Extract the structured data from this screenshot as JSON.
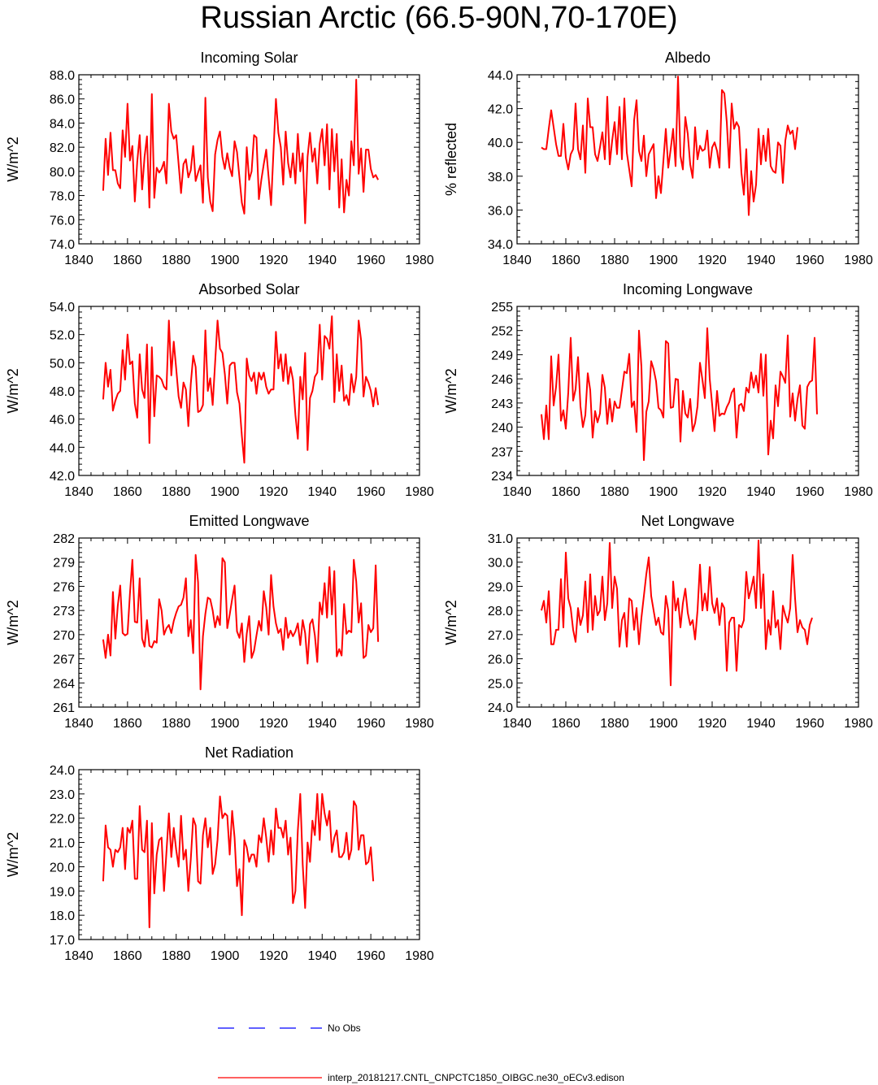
{
  "title": "Russian Arctic (66.5-90N,70-170E)",
  "colors": {
    "model": "#ff0000",
    "obs": "#0000ff",
    "axis": "#000000"
  },
  "legend": {
    "obs_label": "No Obs",
    "model_label": "interp_20181217.CNTL_CNPCTC1850_OIBGC.ne30_oECv3.edison"
  },
  "chart_data": [
    {
      "type": "line",
      "title": "Incoming Solar",
      "ylabel": "W/m^2",
      "xlim": [
        1840,
        1980
      ],
      "xticks": [
        1840,
        1860,
        1880,
        1900,
        1920,
        1940,
        1960,
        1980
      ],
      "ylim": [
        74,
        88
      ],
      "yticks": [
        "74.0",
        "76.0",
        "78.0",
        "80.0",
        "82.0",
        "84.0",
        "86.0",
        "88.0"
      ],
      "x_start": 1850,
      "series": [
        {
          "name": "model",
          "values": [
            78.4,
            82.7,
            79.7,
            83.2,
            80.1,
            80.1,
            79.0,
            78.6,
            83.4,
            81.2,
            85.6,
            80.9,
            82.1,
            77.5,
            80.8,
            83.0,
            78.5,
            81.2,
            82.9,
            77.0,
            86.4,
            77.8,
            80.3,
            79.9,
            80.2,
            80.8,
            79.0,
            85.6,
            83.3,
            82.7,
            83.0,
            80.6,
            78.2,
            80.6,
            81.0,
            79.5,
            80.1,
            82.1,
            79.2,
            79.9,
            80.5,
            77.4,
            86.1,
            79.5,
            77.5,
            76.7,
            81.4,
            82.6,
            83.3,
            81.2,
            80.2,
            81.5,
            80.3,
            79.6,
            82.5,
            81.6,
            79.5,
            77.4,
            76.5,
            82.0,
            79.3,
            80.0,
            83.0,
            82.8,
            77.7,
            79.3,
            80.6,
            81.8,
            79.5,
            77.2,
            81.7,
            86.0,
            83.2,
            82.0,
            78.9,
            83.3,
            80.7,
            79.5,
            81.5,
            79.0,
            83.1,
            80.0,
            81.5,
            75.7,
            81.2,
            83.2,
            80.8,
            81.9,
            79.0,
            82.3,
            83.5,
            80.5,
            83.9,
            78.5,
            83.5,
            80.0,
            83.1,
            77.0,
            81.0,
            76.6,
            79.3,
            78.0,
            82.5,
            80.5,
            87.6,
            79.8,
            81.9,
            78.3,
            81.8,
            81.8,
            80.2,
            79.5,
            79.7,
            79.3
          ]
        }
      ]
    },
    {
      "type": "line",
      "title": "Albedo",
      "ylabel": "% reflected",
      "xlim": [
        1840,
        1980
      ],
      "xticks": [
        1840,
        1860,
        1880,
        1900,
        1920,
        1940,
        1960,
        1980
      ],
      "ylim": [
        34,
        44
      ],
      "yticks": [
        "34.0",
        "36.0",
        "38.0",
        "40.0",
        "42.0",
        "44.0"
      ],
      "x_start": 1850,
      "series": [
        {
          "name": "model",
          "values": [
            39.7,
            39.6,
            39.6,
            40.8,
            41.9,
            40.9,
            39.9,
            39.2,
            39.2,
            41.1,
            39.1,
            38.4,
            39.3,
            39.6,
            42.3,
            39.6,
            39.0,
            41.0,
            38.2,
            42.6,
            40.9,
            40.9,
            39.3,
            38.9,
            39.7,
            40.6,
            39.0,
            42.7,
            38.7,
            40.1,
            41.2,
            39.3,
            42.1,
            39.0,
            42.6,
            39.4,
            38.4,
            37.4,
            41.3,
            42.5,
            39.5,
            38.9,
            40.4,
            38.0,
            39.3,
            39.6,
            39.9,
            36.7,
            38.0,
            37.0,
            38.9,
            40.8,
            38.5,
            39.6,
            40.8,
            38.6,
            43.9,
            39.2,
            38.4,
            41.5,
            40.5,
            38.7,
            37.9,
            40.9,
            39.0,
            39.8,
            39.5,
            39.6,
            40.7,
            38.5,
            39.7,
            40.0,
            39.5,
            38.5,
            43.1,
            42.9,
            41.2,
            38.5,
            42.3,
            40.8,
            41.2,
            40.9,
            38.2,
            36.9,
            39.6,
            35.7,
            38.3,
            36.5,
            37.5,
            40.8,
            38.7,
            40.4,
            38.9,
            40.8,
            38.6,
            38.3,
            38.2,
            40.0,
            39.8,
            37.6,
            40.1,
            41.0,
            40.5,
            40.7,
            39.6,
            40.9
          ]
        }
      ]
    },
    {
      "type": "line",
      "title": "Absorbed Solar",
      "ylabel": "W/m^2",
      "xlim": [
        1840,
        1980
      ],
      "xticks": [
        1840,
        1860,
        1880,
        1900,
        1920,
        1940,
        1960,
        1980
      ],
      "ylim": [
        42,
        54
      ],
      "yticks": [
        "42.0",
        "44.0",
        "46.0",
        "48.0",
        "50.0",
        "52.0",
        "54.0"
      ],
      "x_start": 1850,
      "series": [
        {
          "name": "model",
          "values": [
            47.4,
            50.0,
            48.3,
            49.5,
            46.6,
            47.3,
            47.8,
            48.0,
            50.9,
            48.8,
            52.0,
            49.9,
            50.1,
            47.1,
            46.1,
            50.6,
            48.1,
            47.5,
            51.3,
            44.3,
            51.1,
            46.2,
            49.1,
            49.0,
            48.8,
            48.3,
            48.1,
            53.0,
            49.1,
            51.5,
            49.6,
            47.6,
            46.8,
            48.6,
            48.1,
            45.5,
            48.5,
            50.5,
            49.7,
            46.5,
            46.6,
            47.0,
            52.3,
            48.0,
            48.9,
            47.0,
            50.0,
            53.0,
            51.0,
            50.7,
            49.2,
            47.1,
            49.8,
            50.0,
            50.0,
            47.9,
            47.1,
            44.8,
            42.9,
            50.3,
            49.1,
            48.7,
            49.3,
            47.8,
            49.3,
            48.8,
            49.3,
            48.3,
            47.8,
            48.1,
            48.1,
            52.2,
            49.6,
            50.6,
            48.7,
            50.6,
            48.5,
            49.7,
            48.8,
            46.3,
            44.6,
            49.0,
            47.4,
            50.7,
            43.8,
            47.5,
            48.0,
            49.0,
            49.3,
            52.7,
            48.8,
            51.9,
            51.7,
            51.0,
            53.3,
            47.2,
            50.6,
            48.0,
            49.8,
            47.3,
            47.7,
            47.0,
            49.2,
            47.9,
            49.0,
            53.0,
            51.6,
            47.6,
            49.0,
            48.6,
            48.0,
            46.9,
            48.2,
            47.0
          ]
        }
      ]
    },
    {
      "type": "line",
      "title": "Incoming Longwave",
      "ylabel": "W/m^2",
      "xlim": [
        1840,
        1980
      ],
      "xticks": [
        1840,
        1860,
        1880,
        1900,
        1920,
        1940,
        1960,
        1980
      ],
      "ylim": [
        234,
        255
      ],
      "yticks": [
        "234",
        "237",
        "240",
        "243",
        "246",
        "249",
        "252",
        "255"
      ],
      "x_start": 1850,
      "series": [
        {
          "name": "model",
          "values": [
            241.6,
            238.5,
            242.7,
            238.5,
            248.8,
            242.7,
            245.0,
            249.0,
            240.8,
            242.1,
            239.8,
            244.3,
            251.1,
            243.3,
            244.7,
            248.7,
            242.6,
            240.0,
            241.5,
            246.7,
            244.6,
            238.7,
            242.0,
            240.6,
            241.7,
            246.5,
            244.9,
            240.4,
            243.5,
            240.7,
            243.2,
            242.4,
            242.4,
            244.6,
            246.9,
            246.7,
            249.1,
            242.5,
            243.2,
            239.4,
            252.0,
            247.5,
            235.9,
            241.9,
            243.2,
            248.2,
            247.2,
            245.7,
            242.4,
            242.1,
            241.2,
            250.7,
            250.4,
            242.4,
            242.5,
            246.0,
            245.9,
            238.2,
            244.5,
            241.7,
            241.2,
            243.5,
            239.5,
            240.5,
            242.6,
            248.0,
            245.9,
            243.6,
            252.3,
            246.0,
            242.8,
            239.5,
            244.5,
            241.4,
            241.7,
            241.6,
            242.5,
            243.1,
            244.3,
            244.8,
            238.7,
            242.7,
            242.9,
            242.0,
            244.9,
            244.3,
            246.8,
            244.9,
            246.4,
            244.3,
            249.1,
            243.9,
            249.0,
            236.6,
            240.8,
            238.6,
            245.2,
            242.6,
            246.9,
            246.3,
            245.5,
            251.4,
            241.3,
            244.2,
            240.8,
            243.5,
            245.2,
            240.2,
            239.8,
            245.0,
            245.6,
            245.8,
            251.1,
            241.6
          ]
        }
      ]
    },
    {
      "type": "line",
      "title": "Emitted Longwave",
      "ylabel": "W/m^2",
      "xlim": [
        1840,
        1980
      ],
      "xticks": [
        1840,
        1860,
        1880,
        1900,
        1920,
        1940,
        1960,
        1980
      ],
      "ylim": [
        261,
        282
      ],
      "yticks": [
        "261",
        "264",
        "267",
        "270",
        "273",
        "276",
        "279",
        "282"
      ],
      "x_start": 1850,
      "series": [
        {
          "name": "model",
          "values": [
            269.4,
            267.1,
            270.0,
            267.4,
            275.3,
            269.5,
            273.6,
            276.1,
            270.2,
            269.9,
            270.1,
            275.1,
            279.3,
            271.6,
            271.5,
            277.0,
            269.5,
            268.5,
            271.8,
            268.6,
            268.4,
            269.2,
            269.0,
            274.4,
            273.0,
            270.0,
            270.8,
            271.2,
            270.2,
            271.7,
            272.7,
            273.5,
            273.7,
            274.6,
            277.0,
            269.8,
            271.8,
            267.7,
            279.9,
            276.5,
            263.2,
            269.8,
            272.6,
            274.6,
            274.4,
            273.0,
            270.9,
            272.3,
            271.2,
            279.5,
            279.0,
            270.8,
            272.5,
            274.4,
            276.1,
            270.4,
            269.6,
            271.4,
            266.6,
            270.1,
            272.3,
            267.1,
            268.0,
            269.9,
            271.7,
            270.5,
            275.4,
            273.4,
            270.0,
            277.4,
            273.5,
            271.4,
            270.2,
            270.7,
            268.1,
            272.1,
            269.6,
            270.5,
            269.8,
            270.4,
            271.4,
            268.7,
            271.8,
            270.2,
            266.4,
            271.3,
            271.9,
            269.9,
            266.6,
            274.0,
            272.5,
            276.4,
            272.1,
            278.4,
            272.5,
            277.9,
            267.3,
            268.2,
            267.4,
            273.8,
            270.1,
            270.5,
            270.3,
            279.3,
            276.6,
            271.5,
            273.9,
            267.1,
            267.4,
            271.2,
            270.3,
            270.8,
            278.6,
            269.1
          ]
        }
      ]
    },
    {
      "type": "line",
      "title": "Net Longwave",
      "ylabel": "W/m^2",
      "xlim": [
        1840,
        1980
      ],
      "xticks": [
        1840,
        1860,
        1880,
        1900,
        1920,
        1940,
        1960,
        1980
      ],
      "ylim": [
        24,
        31
      ],
      "yticks": [
        "24.0",
        "25.0",
        "26.0",
        "27.0",
        "28.0",
        "29.0",
        "30.0",
        "31.0"
      ],
      "x_start": 1850,
      "series": [
        {
          "name": "model",
          "values": [
            28.0,
            28.4,
            27.5,
            28.8,
            26.6,
            26.6,
            27.2,
            27.2,
            29.3,
            27.3,
            30.4,
            28.5,
            28.1,
            27.2,
            26.7,
            28.1,
            27.4,
            27.8,
            29.2,
            27.1,
            29.5,
            27.2,
            28.6,
            27.8,
            28.0,
            29.4,
            27.6,
            28.3,
            30.8,
            28.1,
            29.4,
            28.9,
            26.5,
            27.6,
            27.9,
            26.5,
            28.5,
            28.4,
            27.2,
            28.1,
            26.6,
            27.7,
            28.6,
            29.5,
            30.2,
            28.6,
            28.0,
            27.4,
            27.7,
            27.1,
            27.0,
            28.6,
            28.0,
            24.9,
            29.2,
            28.0,
            28.5,
            27.3,
            28.3,
            28.9,
            27.9,
            27.4,
            27.6,
            26.8,
            28.0,
            29.9,
            28.0,
            28.7,
            28.0,
            29.8,
            28.3,
            27.9,
            28.5,
            27.4,
            28.3,
            28.1,
            25.5,
            27.5,
            27.7,
            27.7,
            25.5,
            27.4,
            27.3,
            27.6,
            29.6,
            28.5,
            28.9,
            29.4,
            28.1,
            30.9,
            28.1,
            29.5,
            26.4,
            27.6,
            27.0,
            28.8,
            27.3,
            27.6,
            26.4,
            28.2,
            27.8,
            27.5,
            28.1,
            30.3,
            28.5,
            27.1,
            27.6,
            27.3,
            27.2,
            26.6,
            27.4,
            27.7
          ]
        }
      ]
    },
    {
      "type": "line",
      "title": "Net Radiation",
      "ylabel": "W/m^2",
      "xlim": [
        1840,
        1980
      ],
      "xticks": [
        1840,
        1860,
        1880,
        1900,
        1920,
        1940,
        1960,
        1980
      ],
      "ylim": [
        17,
        24
      ],
      "yticks": [
        "17.0",
        "18.0",
        "19.0",
        "20.0",
        "21.0",
        "22.0",
        "23.0",
        "24.0"
      ],
      "x_start": 1850,
      "series": [
        {
          "name": "model",
          "values": [
            19.4,
            21.7,
            20.8,
            20.7,
            20.0,
            20.7,
            20.6,
            20.8,
            21.6,
            19.9,
            21.6,
            21.4,
            21.9,
            19.5,
            19.5,
            22.5,
            20.7,
            20.6,
            21.9,
            17.5,
            21.8,
            18.9,
            20.5,
            21.1,
            21.2,
            19.0,
            20.6,
            22.2,
            20.4,
            21.6,
            20.7,
            20.0,
            22.1,
            20.3,
            20.7,
            19.0,
            20.3,
            22.0,
            21.7,
            19.4,
            19.3,
            21.3,
            22.0,
            20.8,
            21.6,
            19.7,
            20.1,
            21.1,
            22.9,
            22.0,
            22.2,
            22.1,
            20.5,
            22.3,
            21.2,
            19.2,
            19.9,
            18.0,
            21.1,
            20.8,
            20.2,
            20.5,
            20.5,
            20.0,
            21.3,
            21.0,
            22.0,
            21.2,
            20.2,
            21.5,
            20.5,
            22.4,
            21.6,
            21.6,
            21.2,
            21.9,
            20.5,
            21.2,
            18.5,
            19.0,
            21.5,
            23.0,
            20.1,
            18.3,
            21.0,
            20.2,
            21.9,
            21.3,
            23.0,
            21.1,
            23.0,
            22.2,
            21.7,
            22.3,
            20.6,
            21.2,
            21.5,
            20.4,
            20.4,
            20.6,
            21.4,
            20.3,
            20.7,
            22.7,
            22.5,
            20.7,
            21.3,
            21.3,
            20.1,
            20.2,
            20.8,
            19.4
          ]
        }
      ]
    }
  ]
}
